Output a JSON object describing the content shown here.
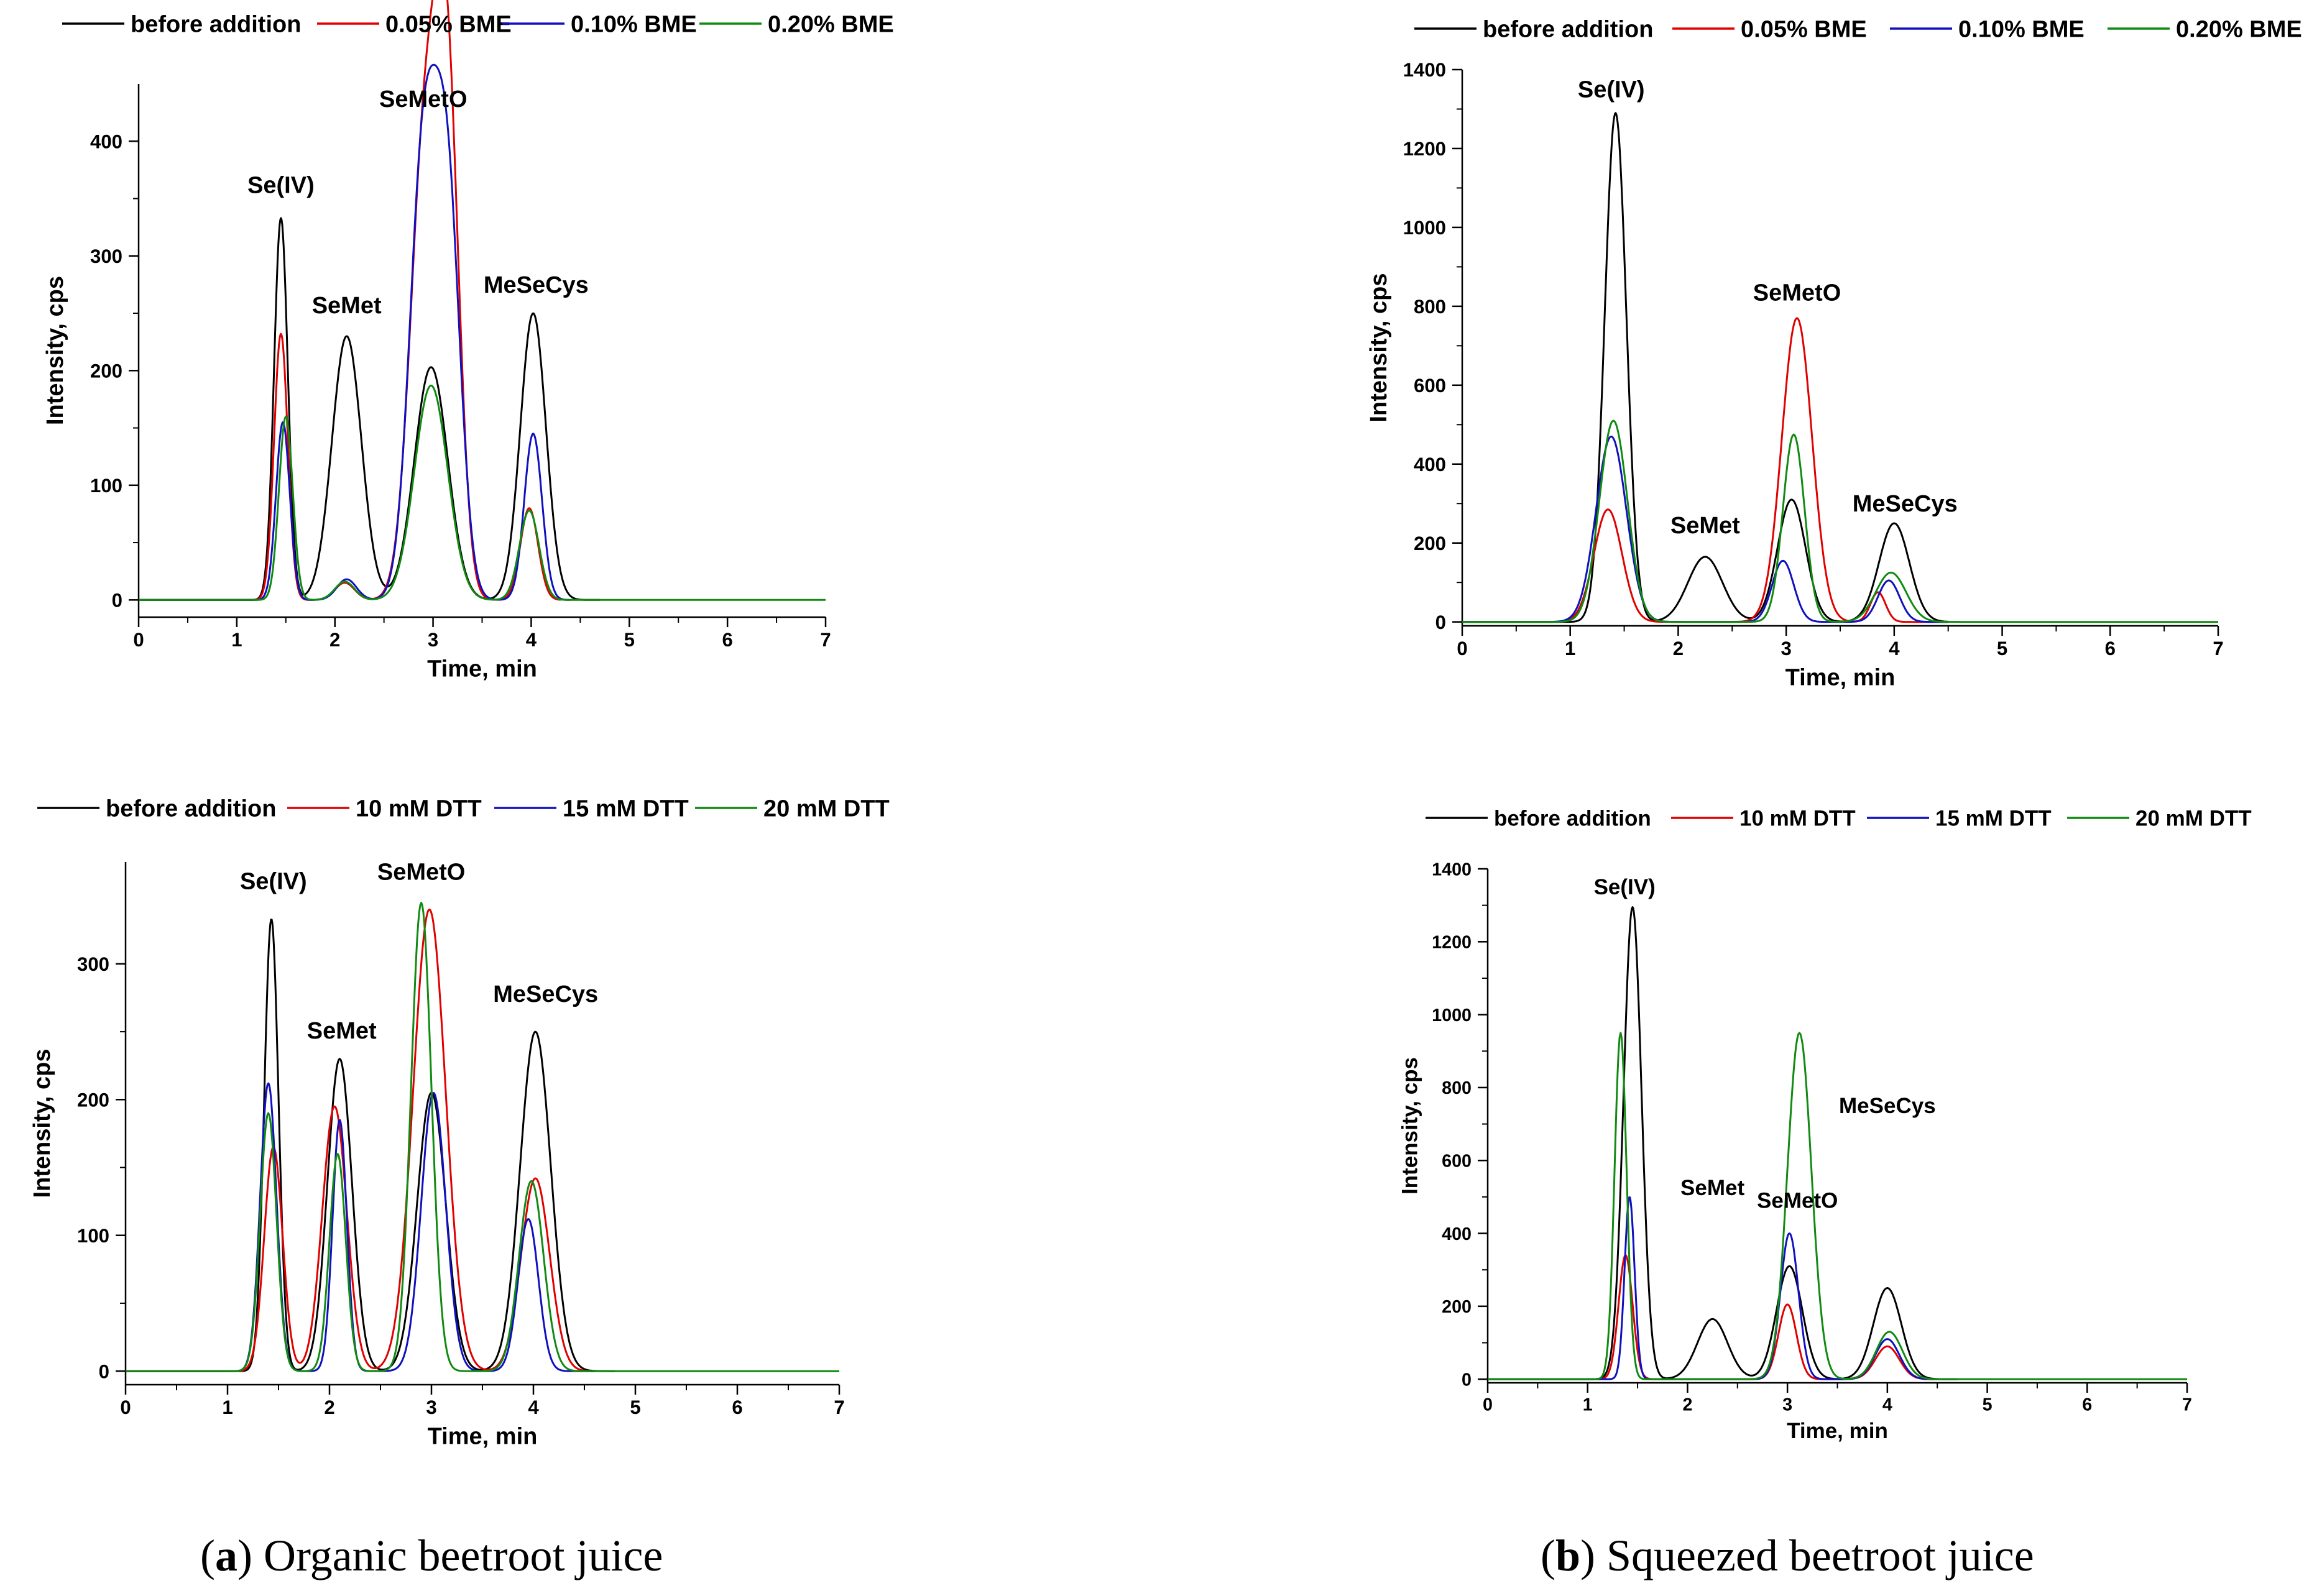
{
  "colors": {
    "before": "#000000",
    "c1": "#e00000",
    "c2": "#1010c0",
    "c3": "#108a10"
  },
  "captions": {
    "a": {
      "letter": "a",
      "text": " Organic beetroot juice"
    },
    "b": {
      "letter": "b",
      "text": " Squeezed beetroot juice"
    }
  },
  "chart_data": [
    {
      "id": "a-top",
      "type": "line",
      "xlabel": "Time, min",
      "ylabel": "Intensity, cps",
      "xlim": [
        0,
        7
      ],
      "ylim": [
        -15,
        450
      ],
      "xticks": [
        0,
        1,
        2,
        3,
        4,
        5,
        6,
        7
      ],
      "yticks": [
        0,
        100,
        200,
        300,
        400
      ],
      "legend": [
        "before addition",
        "0.05% ΒΜΕ",
        "0.10% ΒΜΕ",
        "0.20% ΒΜΕ"
      ],
      "annotations": [
        {
          "text": "Se(IV)",
          "x": 1.45,
          "y": 355
        },
        {
          "text": "SeMet",
          "x": 2.12,
          "y": 250
        },
        {
          "text": "SeMetO",
          "x": 2.9,
          "y": 430
        },
        {
          "text": "MeSeCys",
          "x": 4.05,
          "y": 268
        }
      ],
      "series": [
        {
          "name": "before addition",
          "peaks": [
            [
              1.45,
              333,
              0.07
            ],
            [
              2.12,
              230,
              0.15
            ],
            [
              2.98,
              203,
              0.17
            ],
            [
              4.02,
              250,
              0.13
            ]
          ],
          "end": 4.7
        },
        {
          "name": "0.05% ΒΜΕ",
          "peaks": [
            [
              1.45,
              232,
              0.07
            ],
            [
              2.1,
              15,
              0.1
            ],
            [
              2.92,
              400,
              0.15
            ],
            [
              3.15,
              395,
              0.12
            ],
            [
              3.98,
              80,
              0.09
            ]
          ],
          "end": 4.3
        },
        {
          "name": "0.10% ΒΜΕ",
          "peaks": [
            [
              1.47,
              155,
              0.07
            ],
            [
              2.12,
              18,
              0.1
            ],
            [
              2.9,
              380,
              0.14
            ],
            [
              3.15,
              335,
              0.13
            ],
            [
              4.02,
              145,
              0.09
            ]
          ],
          "end": 4.4
        },
        {
          "name": "0.20% ΒΜΕ",
          "peaks": [
            [
              1.5,
              160,
              0.07
            ],
            [
              2.1,
              16,
              0.1
            ],
            [
              2.98,
              187,
              0.17
            ],
            [
              3.98,
              78,
              0.1
            ]
          ],
          "end": 7
        }
      ]
    },
    {
      "id": "b-top",
      "type": "line",
      "xlabel": "Time, min",
      "ylabel": "Intensity, cps",
      "xlim": [
        0,
        7
      ],
      "ylim": [
        -10,
        1400
      ],
      "xticks": [
        0,
        1,
        2,
        3,
        4,
        5,
        6,
        7
      ],
      "yticks": [
        0,
        200,
        400,
        600,
        800,
        1000,
        1200,
        1400
      ],
      "legend": [
        "before addition",
        "0.05% ΒΜΕ",
        "0.10% ΒΜΕ",
        "0.20% ΒΜΕ"
      ],
      "annotations": [
        {
          "text": "Se(IV)",
          "x": 1.38,
          "y": 1330
        },
        {
          "text": "SeMet",
          "x": 2.25,
          "y": 225
        },
        {
          "text": "SeMetO",
          "x": 3.1,
          "y": 815
        },
        {
          "text": "MeSeCys",
          "x": 4.1,
          "y": 280
        }
      ],
      "series": [
        {
          "name": "before addition",
          "peaks": [
            [
              1.42,
              1290,
              0.1
            ],
            [
              2.25,
              165,
              0.16
            ],
            [
              3.05,
              310,
              0.13
            ],
            [
              4.0,
              250,
              0.14
            ]
          ],
          "end": 4.5
        },
        {
          "name": "0.05% ΒΜΕ",
          "peaks": [
            [
              1.35,
              285,
              0.13
            ],
            [
              3.1,
              770,
              0.14
            ],
            [
              3.85,
              75,
              0.07
            ]
          ],
          "end": 4.5
        },
        {
          "name": "0.10% ΒΜΕ",
          "peaks": [
            [
              1.38,
              470,
              0.14
            ],
            [
              2.97,
              155,
              0.1
            ],
            [
              3.95,
              105,
              0.1
            ]
          ],
          "end": 4.5
        },
        {
          "name": "0.20% ΒΜΕ",
          "peaks": [
            [
              1.4,
              510,
              0.13
            ],
            [
              3.07,
              475,
              0.1
            ],
            [
              3.97,
              125,
              0.14
            ]
          ],
          "end": 7
        }
      ]
    },
    {
      "id": "a-bottom",
      "type": "line",
      "xlabel": "Time, min",
      "ylabel": "Intensity, cps",
      "xlim": [
        0,
        7
      ],
      "ylim": [
        -10,
        375
      ],
      "xticks": [
        0,
        1,
        2,
        3,
        4,
        5,
        6,
        7
      ],
      "yticks": [
        0,
        100,
        200,
        300
      ],
      "legend": [
        "before addition",
        "10 mM DTT",
        "15 mM DTT",
        "20 mM DTT"
      ],
      "annotations": [
        {
          "text": "Se(IV)",
          "x": 1.45,
          "y": 355
        },
        {
          "text": "SeMet",
          "x": 2.12,
          "y": 245
        },
        {
          "text": "SeMetO",
          "x": 2.9,
          "y": 362
        },
        {
          "text": "MeSeCys",
          "x": 4.12,
          "y": 272
        }
      ],
      "series": [
        {
          "name": "before addition",
          "peaks": [
            [
              1.43,
              333,
              0.07
            ],
            [
              2.1,
              230,
              0.12
            ],
            [
              3.0,
              205,
              0.14
            ],
            [
              4.02,
              250,
              0.15
            ]
          ],
          "end": 4.8
        },
        {
          "name": "10 mM DTT",
          "peaks": [
            [
              1.45,
              165,
              0.09
            ],
            [
              2.05,
              195,
              0.12
            ],
            [
              2.98,
              340,
              0.16
            ],
            [
              4.02,
              142,
              0.14
            ]
          ],
          "end": 4.6
        },
        {
          "name": "15 mM DTT",
          "peaks": [
            [
              1.4,
              212,
              0.08
            ],
            [
              2.1,
              185,
              0.07
            ],
            [
              3.02,
              205,
              0.12
            ],
            [
              3.95,
              112,
              0.1
            ]
          ],
          "end": 4.6
        },
        {
          "name": "20 mM DTT",
          "peaks": [
            [
              1.4,
              190,
              0.08
            ],
            [
              2.08,
              160,
              0.08
            ],
            [
              2.9,
              345,
              0.1
            ],
            [
              3.98,
              140,
              0.12
            ]
          ],
          "end": 7
        }
      ]
    },
    {
      "id": "b-bottom",
      "type": "line",
      "xlabel": "Time, min",
      "ylabel": "Intensity, cps",
      "xlim": [
        0,
        7
      ],
      "ylim": [
        -10,
        1400
      ],
      "xticks": [
        0,
        1,
        2,
        3,
        4,
        5,
        6,
        7
      ],
      "yticks": [
        0,
        200,
        400,
        600,
        800,
        1000,
        1200,
        1400
      ],
      "legend": [
        "before addition",
        "10 mM DTT",
        "15 mM DTT",
        "20 mM DTT"
      ],
      "annotations": [
        {
          "text": "Se(IV)",
          "x": 1.37,
          "y": 1330
        },
        {
          "text": "SeMet",
          "x": 2.25,
          "y": 505
        },
        {
          "text": "SeMetO",
          "x": 3.1,
          "y": 470
        },
        {
          "text": "MeSeCys",
          "x": 4.0,
          "y": 730
        }
      ],
      "series": [
        {
          "name": "before addition",
          "peaks": [
            [
              1.45,
              1295,
              0.09
            ],
            [
              2.25,
              165,
              0.15
            ],
            [
              3.02,
              310,
              0.13
            ],
            [
              4.0,
              250,
              0.14
            ]
          ],
          "end": 4.7
        },
        {
          "name": "10 mM DTT",
          "peaks": [
            [
              1.38,
              340,
              0.07
            ],
            [
              3.0,
              205,
              0.09
            ],
            [
              4.0,
              90,
              0.12
            ]
          ],
          "end": 4.7
        },
        {
          "name": "15 mM DTT",
          "peaks": [
            [
              1.42,
              500,
              0.05
            ],
            [
              3.02,
              400,
              0.09
            ],
            [
              4.0,
              110,
              0.12
            ]
          ],
          "end": 4.7
        },
        {
          "name": "20 mM DTT",
          "peaks": [
            [
              1.33,
              950,
              0.06
            ],
            [
              3.12,
              950,
              0.12
            ],
            [
              4.02,
              130,
              0.13
            ]
          ],
          "end": 7
        }
      ]
    }
  ]
}
